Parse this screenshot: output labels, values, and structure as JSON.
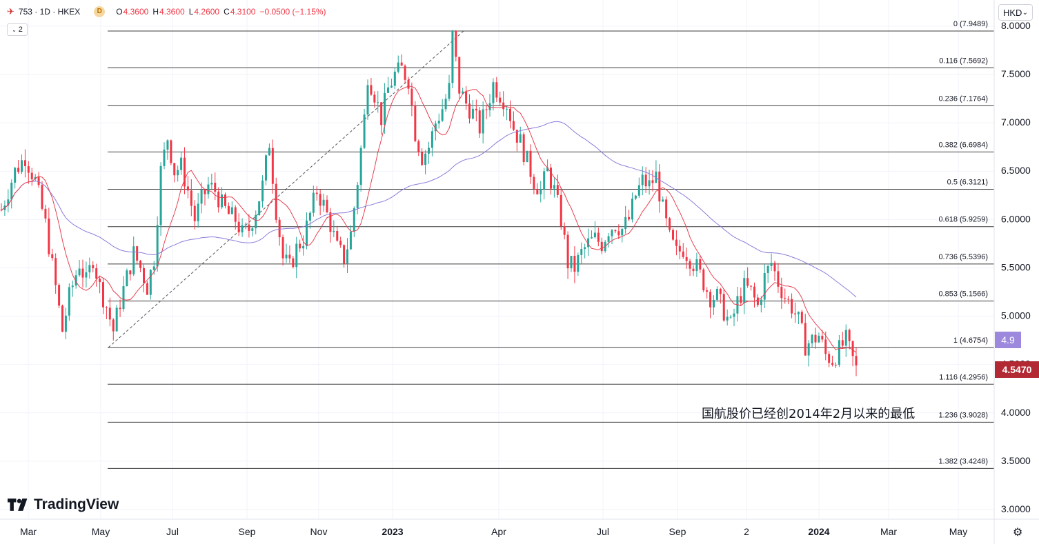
{
  "header": {
    "symbol": "753 · 1D · HKEX",
    "timeframe_badge": "D",
    "ohlc": [
      {
        "k": "O",
        "v": "4.3600"
      },
      {
        "k": "H",
        "v": "4.3600"
      },
      {
        "k": "L",
        "v": "4.2600"
      },
      {
        "k": "C",
        "v": "4.3100"
      }
    ],
    "change": "−0.0500 (−1.15%)",
    "indicator_count": "2",
    "currency": "HKD",
    "currency_icon": "chevron-down-icon"
  },
  "annotation": "国航股价已经创2014年2月以来的最低",
  "brand": "TradingView",
  "colors": {
    "up": "#26a69a",
    "down": "#f23645",
    "ma_short": "#e5404f",
    "ma_long": "#8c7bd9",
    "fib_line": "#3d3d3d",
    "price_label_bg": "#b22833",
    "ma_label_bg": "#9c89de",
    "grid": "#f0f3fa"
  },
  "chart_data": {
    "type": "candlestick",
    "ylim": [
      2.9,
      8.27
    ],
    "yticks": [
      "8.0000",
      "7.5000",
      "7.0000",
      "6.5000",
      "6.0000",
      "5.5000",
      "5.0000",
      "4.5000",
      "4.0000",
      "3.5000",
      "3.0000"
    ],
    "xticks": [
      "Mar",
      "May",
      "Jul",
      "Sep",
      "Nov",
      "2023",
      "Apr",
      "Jul",
      "Sep",
      "2",
      "2024",
      "Mar",
      "May"
    ],
    "bold_xticks": [
      "2023",
      "2024"
    ],
    "fib_levels": [
      {
        "label": "0 (7.9489)",
        "price": 7.9489
      },
      {
        "label": "0.116 (7.5692)",
        "price": 7.5692
      },
      {
        "label": "0.236 (7.1764)",
        "price": 7.1764
      },
      {
        "label": "0.382 (6.6984)",
        "price": 6.6984
      },
      {
        "label": "0.5 (6.3121)",
        "price": 6.3121
      },
      {
        "label": "0.618 (5.9259)",
        "price": 5.9259
      },
      {
        "label": "0.736 (5.5396)",
        "price": 5.5396
      },
      {
        "label": "0.853 (5.1566)",
        "price": 5.1566
      },
      {
        "label": "1 (4.6754)",
        "price": 4.6754
      },
      {
        "label": "1.116 (4.2956)",
        "price": 4.2956
      },
      {
        "label": "1.236 (3.9028)",
        "price": 3.9028
      },
      {
        "label": "1.382 (3.4248)",
        "price": 3.4248
      }
    ],
    "fib_trend": {
      "from": {
        "date": "2022-05",
        "price": 4.6754
      },
      "to": {
        "date": "2023-03",
        "price": 7.9489
      }
    },
    "price_path": [
      [
        0,
        6.1
      ],
      [
        4,
        6.5
      ],
      [
        7,
        6.65
      ],
      [
        10,
        6.4
      ],
      [
        13,
        5.95
      ],
      [
        16,
        5.3
      ],
      [
        18,
        4.85
      ],
      [
        20,
        5.2
      ],
      [
        23,
        5.55
      ],
      [
        25,
        5.35
      ],
      [
        27,
        5.6
      ],
      [
        29,
        5.3
      ],
      [
        31,
        5.1
      ],
      [
        33,
        4.85
      ],
      [
        35,
        5.15
      ],
      [
        37,
        5.4
      ],
      [
        39,
        5.65
      ],
      [
        41,
        5.5
      ],
      [
        43,
        5.3
      ],
      [
        45,
        5.6
      ],
      [
        47,
        6.5
      ],
      [
        49,
        6.85
      ],
      [
        51,
        6.5
      ],
      [
        53,
        6.55
      ],
      [
        55,
        6.3
      ],
      [
        57,
        6.0
      ],
      [
        59,
        6.2
      ],
      [
        61,
        6.35
      ],
      [
        63,
        6.3
      ],
      [
        65,
        6.15
      ],
      [
        67,
        6.05
      ],
      [
        69,
        6.0
      ],
      [
        71,
        5.85
      ],
      [
        73,
        5.9
      ],
      [
        75,
        6.1
      ],
      [
        77,
        6.35
      ],
      [
        79,
        6.8
      ],
      [
        81,
        6.1
      ],
      [
        83,
        5.6
      ],
      [
        85,
        5.5
      ],
      [
        87,
        5.7
      ],
      [
        89,
        5.8
      ],
      [
        91,
        6.05
      ],
      [
        93,
        6.3
      ],
      [
        95,
        6.15
      ],
      [
        97,
        5.95
      ],
      [
        99,
        5.7
      ],
      [
        101,
        5.6
      ],
      [
        103,
        5.85
      ],
      [
        105,
        6.4
      ],
      [
        107,
        7.05
      ],
      [
        108,
        7.5
      ],
      [
        110,
        7.3
      ],
      [
        112,
        7.05
      ],
      [
        114,
        7.35
      ],
      [
        116,
        7.5
      ],
      [
        118,
        7.55
      ],
      [
        120,
        7.45
      ],
      [
        122,
        6.9
      ],
      [
        124,
        6.65
      ],
      [
        126,
        6.75
      ],
      [
        128,
        7.0
      ],
      [
        130,
        7.15
      ],
      [
        132,
        7.35
      ],
      [
        133,
        7.9
      ],
      [
        135,
        7.35
      ],
      [
        137,
        7.2
      ],
      [
        139,
        7.1
      ],
      [
        141,
        6.95
      ],
      [
        143,
        7.15
      ],
      [
        145,
        7.4
      ],
      [
        147,
        7.3
      ],
      [
        149,
        7.2
      ],
      [
        151,
        6.95
      ],
      [
        153,
        6.8
      ],
      [
        155,
        6.6
      ],
      [
        157,
        6.4
      ],
      [
        159,
        6.3
      ],
      [
        161,
        6.5
      ],
      [
        163,
        6.3
      ],
      [
        165,
        6.0
      ],
      [
        167,
        5.55
      ],
      [
        169,
        5.5
      ],
      [
        171,
        5.65
      ],
      [
        173,
        5.75
      ],
      [
        175,
        5.8
      ],
      [
        177,
        5.75
      ],
      [
        179,
        5.9
      ],
      [
        181,
        5.95
      ],
      [
        183,
        5.9
      ],
      [
        185,
        6.0
      ],
      [
        187,
        6.25
      ],
      [
        189,
        6.4
      ],
      [
        191,
        6.35
      ],
      [
        193,
        6.45
      ],
      [
        195,
        6.1
      ],
      [
        197,
        5.8
      ],
      [
        199,
        5.65
      ],
      [
        201,
        5.7
      ],
      [
        203,
        5.6
      ],
      [
        205,
        5.5
      ],
      [
        207,
        5.35
      ],
      [
        209,
        5.2
      ],
      [
        211,
        5.2
      ],
      [
        213,
        5.05
      ],
      [
        215,
        4.9
      ],
      [
        217,
        5.15
      ],
      [
        219,
        5.3
      ],
      [
        221,
        5.25
      ],
      [
        223,
        5.1
      ],
      [
        225,
        5.4
      ],
      [
        227,
        5.55
      ],
      [
        229,
        5.35
      ],
      [
        231,
        5.2
      ],
      [
        233,
        5.1
      ],
      [
        235,
        4.95
      ],
      [
        237,
        4.7
      ],
      [
        239,
        4.75
      ],
      [
        241,
        4.8
      ],
      [
        243,
        4.6
      ],
      [
        245,
        4.55
      ],
      [
        247,
        4.65
      ],
      [
        249,
        4.75
      ],
      [
        251,
        4.55
      ],
      [
        253,
        4.35
      ]
    ],
    "ma_short_period": 10,
    "ma_long_period": 60,
    "last_price_label": "4.5470",
    "ma_label": "4.9",
    "legend": "none"
  }
}
